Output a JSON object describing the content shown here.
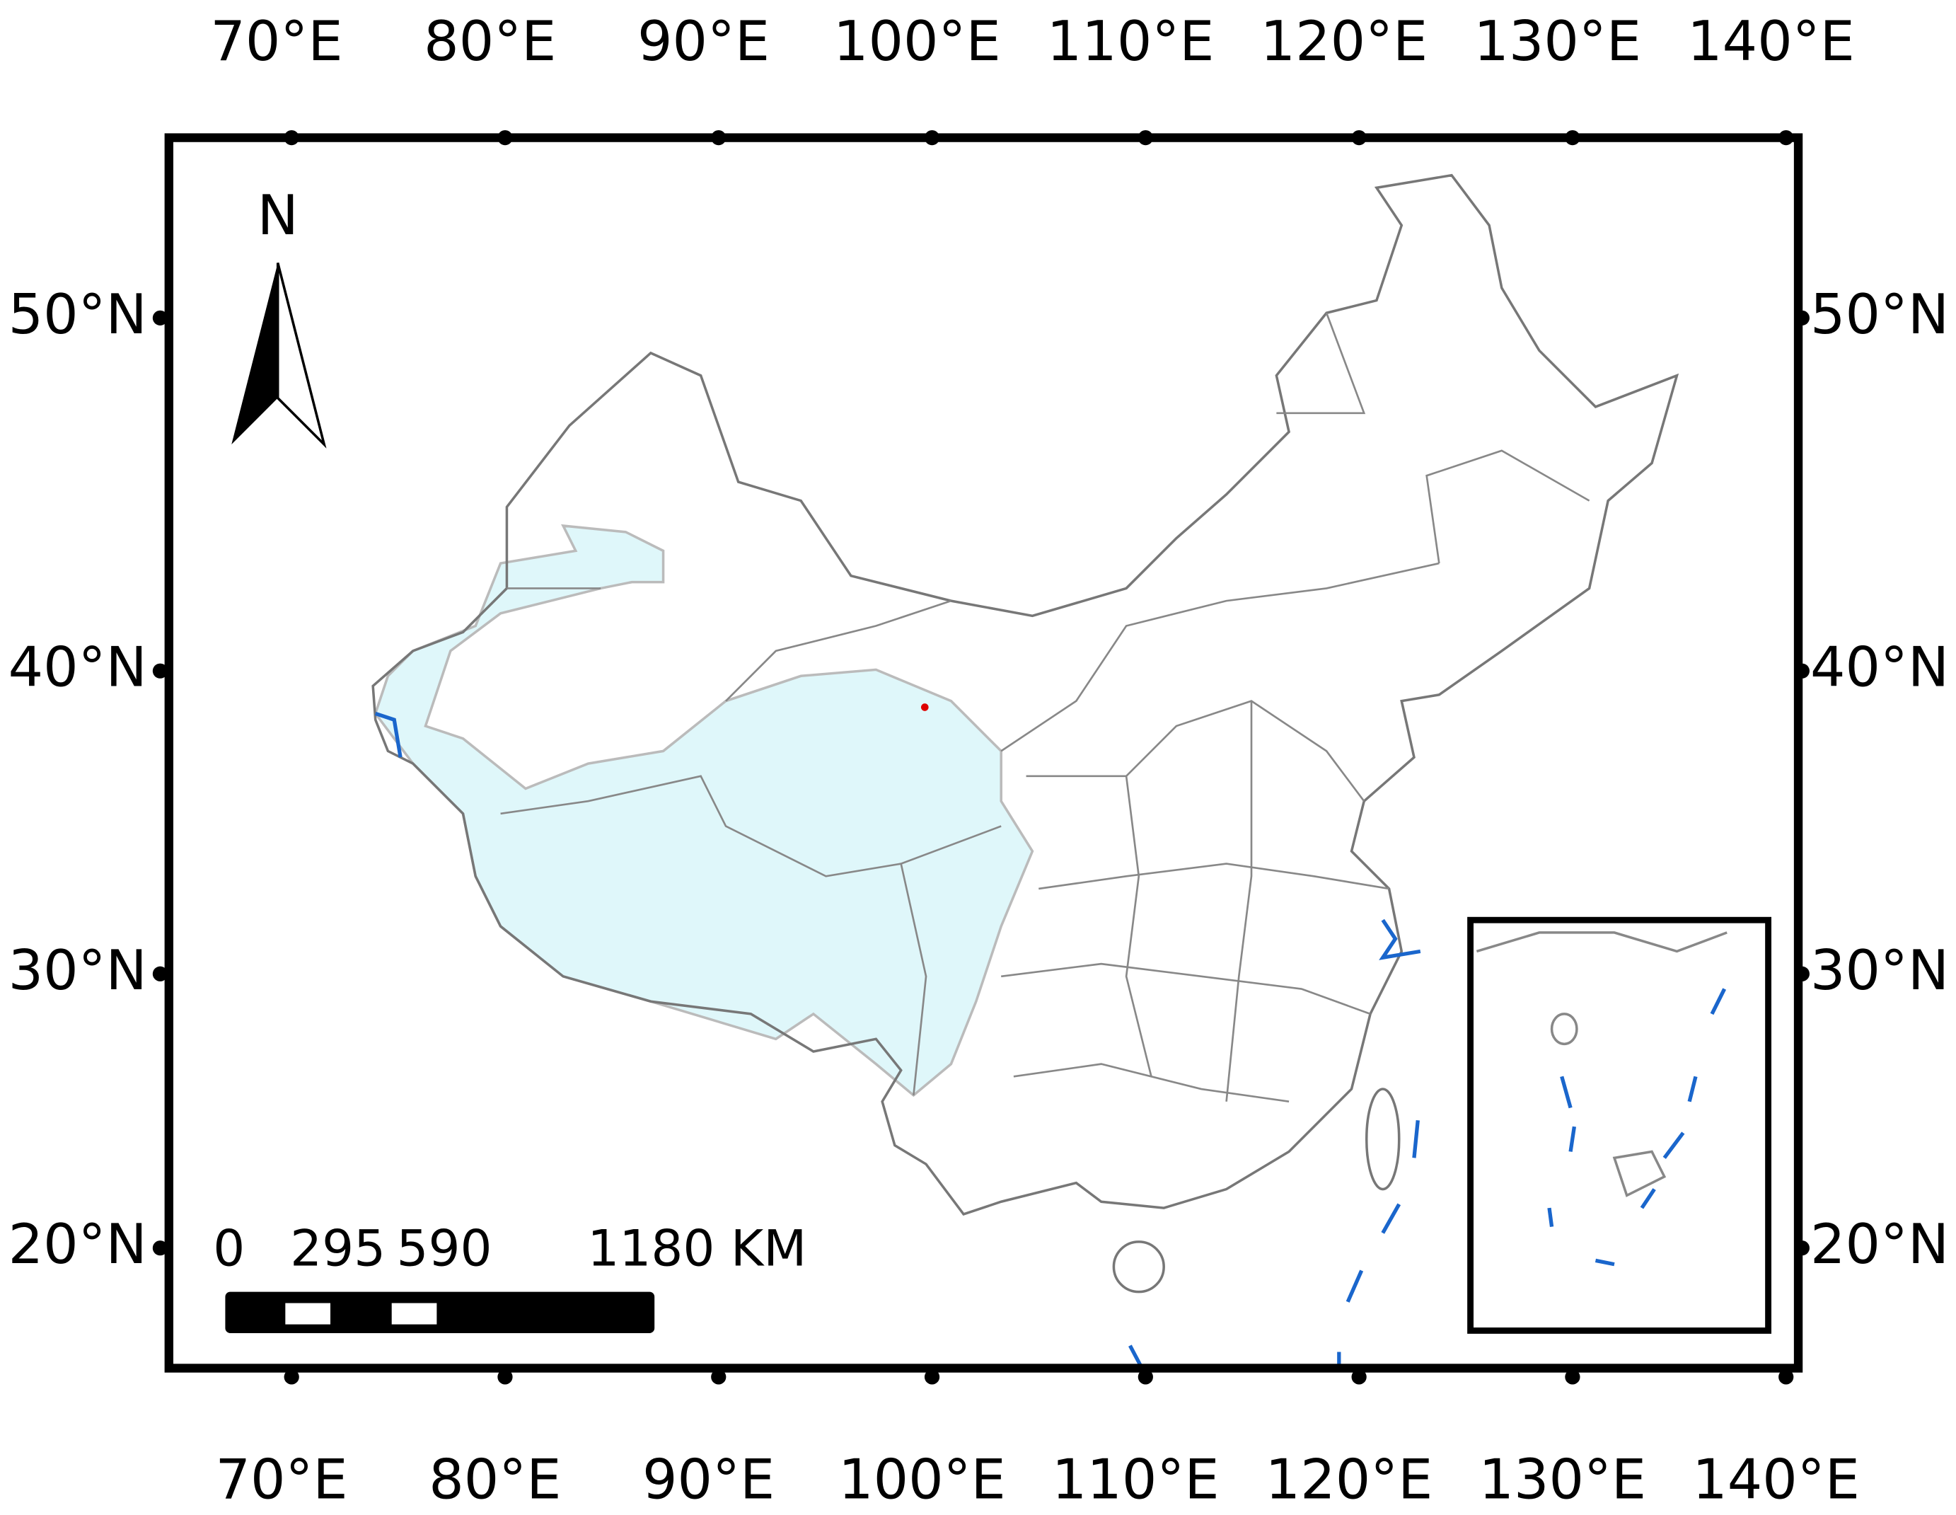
{
  "map": {
    "north_label": "N",
    "top_labels": [
      "70°E",
      "80°E",
      "90°E",
      "100°E",
      "110°E",
      "120°E",
      "130°E",
      "140°E"
    ],
    "bottom_labels": [
      "70°E",
      "80°E",
      "90°E",
      "100°E",
      "110°E",
      "120°E",
      "130°E",
      "140°E"
    ],
    "left_labels": [
      "50°N",
      "40°N",
      "30°N",
      "20°N"
    ],
    "right_labels": [
      "50°N",
      "40°N",
      "30°N",
      "20°N"
    ],
    "scale": {
      "labels": [
        "0",
        "295",
        "590",
        "1180 KM"
      ]
    }
  }
}
